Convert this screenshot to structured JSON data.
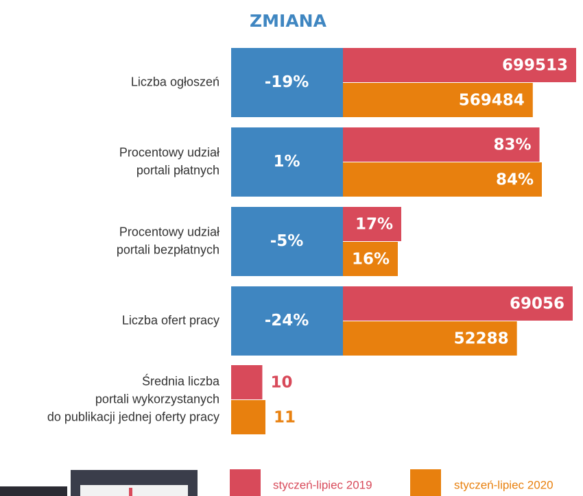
{
  "chart_data": {
    "type": "bar",
    "title": "ZMIANA",
    "categories": [
      [
        "Liczba ogłoszeń"
      ],
      [
        "Procentowy udział",
        "portali płatnych"
      ],
      [
        "Procentowy udział",
        "portali bezpłatnych"
      ],
      [
        "Liczba ofert pracy"
      ],
      [
        "Średnia liczba",
        "portali wykorzystanych",
        "do publikacji jednej oferty pracy"
      ]
    ],
    "changes": [
      -19,
      1,
      -5,
      -24,
      null
    ],
    "change_labels": [
      "-19%",
      "1%",
      "-5%",
      "-24%",
      null
    ],
    "change_color": "#3f86c1",
    "series": [
      {
        "name": "styczeń-lipiec 2019",
        "color": "#d84a5a",
        "values": [
          699513,
          83,
          17,
          69056,
          10
        ],
        "value_labels": [
          "699513",
          "83%",
          "17%",
          "69056",
          "10"
        ]
      },
      {
        "name": "styczeń-lipiec 2020",
        "color": "#e8800e",
        "values": [
          569484,
          84,
          16,
          52288,
          11
        ],
        "value_labels": [
          "569484",
          "84%",
          "16%",
          "52288",
          "11"
        ]
      }
    ]
  }
}
